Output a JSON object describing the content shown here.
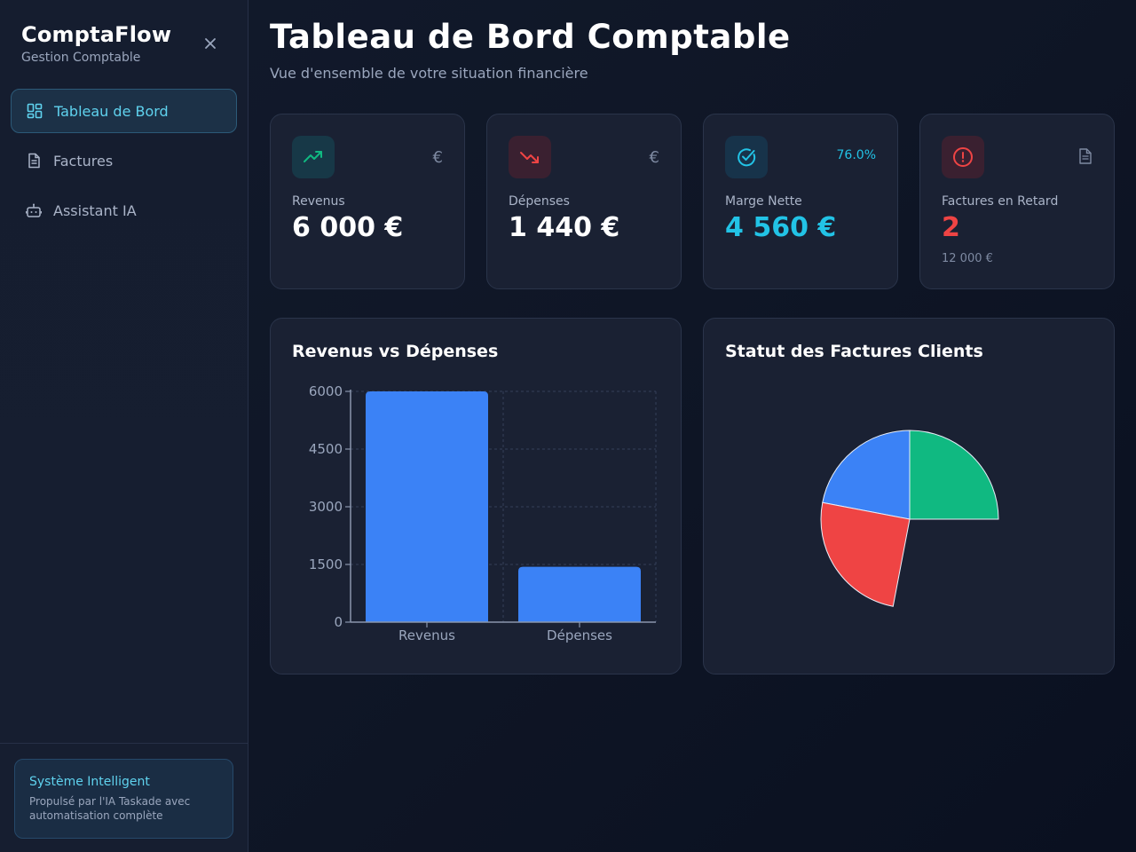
{
  "sidebar": {
    "brand_title": "ComptaFlow",
    "brand_subtitle": "Gestion Comptable",
    "close_icon": "close-icon",
    "items": [
      {
        "label": "Tableau de Bord",
        "icon": "dashboard-grid-icon",
        "active": true
      },
      {
        "label": "Factures",
        "icon": "document-icon",
        "active": false
      },
      {
        "label": "Assistant IA",
        "icon": "robot-icon",
        "active": false
      }
    ],
    "footer": {
      "title": "Système Intelligent",
      "text": "Propulsé par l'IA Taskade avec automatisation complète"
    }
  },
  "header": {
    "title": "Tableau de Bord Comptable",
    "subtitle": "Vue d'ensemble de votre situation financière"
  },
  "kpis": [
    {
      "label": "Revenus",
      "value": "6 000 €",
      "corner": "€",
      "icon": "trend-up-icon",
      "accent": "#10b981"
    },
    {
      "label": "Dépenses",
      "value": "1 440 €",
      "corner": "€",
      "icon": "trend-down-icon",
      "accent": "#ef4444"
    },
    {
      "label": "Marge Nette",
      "value": "4 560 €",
      "corner": "76.0%",
      "icon": "check-circle-icon",
      "accent": "#22c3e6"
    },
    {
      "label": "Factures en Retard",
      "value": "2",
      "sub": "12 000 €",
      "icon": "alert-circle-icon",
      "corner_icon": "document-icon",
      "accent": "#ef4444"
    }
  ],
  "bar_panel": {
    "title": "Revenus vs Dépenses"
  },
  "pie_panel": {
    "title": "Statut des Factures Clients"
  },
  "chart_data": [
    {
      "type": "bar",
      "title": "Revenus vs Dépenses",
      "categories": [
        "Revenus",
        "Dépenses"
      ],
      "values": [
        6000,
        1440
      ],
      "ylim": [
        0,
        6000
      ],
      "yticks": [
        0,
        1500,
        3000,
        4500,
        6000
      ],
      "grid": true,
      "color": "#3b82f6"
    },
    {
      "type": "pie",
      "title": "Statut des Factures Clients",
      "slices": [
        {
          "value": 25,
          "color": "#10b981"
        },
        {
          "value": 22,
          "color": "#3b82f6"
        },
        {
          "value": 25,
          "color": "#ef4444"
        }
      ]
    }
  ]
}
